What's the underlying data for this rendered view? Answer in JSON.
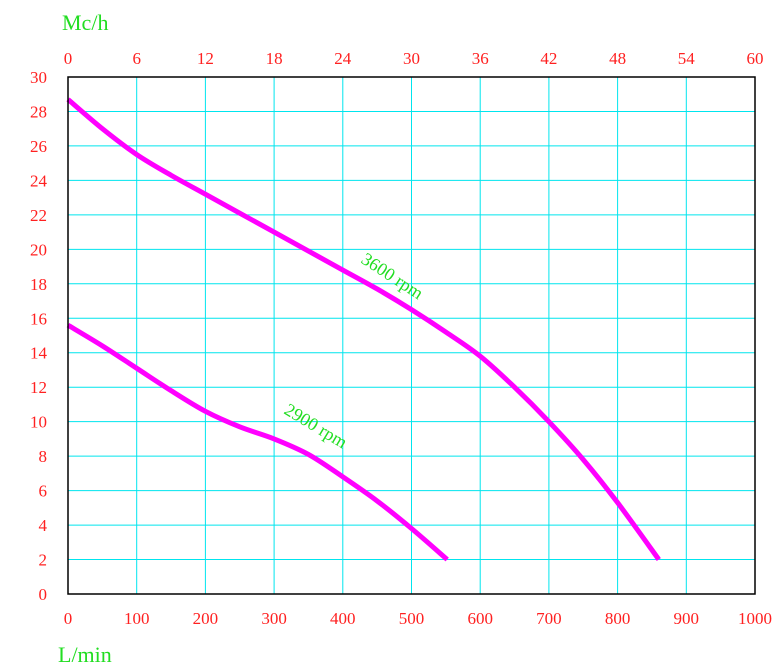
{
  "chart_data": {
    "type": "line",
    "top_axis": {
      "unit_label": "Mc/h",
      "ticks": [
        "0",
        "6",
        "12",
        "18",
        "24",
        "30",
        "36",
        "42",
        "48",
        "54",
        "60"
      ]
    },
    "bottom_axis": {
      "unit_label": "L/min",
      "ticks": [
        "0",
        "100",
        "200",
        "300",
        "400",
        "500",
        "600",
        "700",
        "800",
        "900",
        "1000"
      ],
      "xlim": [
        0,
        1000
      ]
    },
    "left_axis": {
      "ticks": [
        "0",
        "2",
        "4",
        "6",
        "8",
        "10",
        "12",
        "14",
        "16",
        "18",
        "20",
        "22",
        "24",
        "26",
        "28",
        "30"
      ],
      "ylim": [
        0,
        30
      ]
    },
    "grid": true,
    "series": [
      {
        "name": "3600 rpm",
        "x": [
          0,
          50,
          100,
          150,
          200,
          250,
          300,
          350,
          400,
          450,
          500,
          550,
          600,
          650,
          700,
          750,
          800,
          860
        ],
        "y": [
          28.7,
          27.0,
          25.5,
          24.3,
          23.2,
          22.1,
          21.0,
          19.9,
          18.8,
          17.7,
          16.5,
          15.2,
          13.8,
          12.0,
          10.0,
          7.8,
          5.3,
          2.0
        ]
      },
      {
        "name": "2900 rpm",
        "x": [
          0,
          50,
          100,
          150,
          200,
          250,
          300,
          350,
          400,
          450,
          500,
          552
        ],
        "y": [
          15.6,
          14.4,
          13.1,
          11.8,
          10.6,
          9.7,
          9.0,
          8.1,
          6.8,
          5.4,
          3.8,
          2.0
        ]
      }
    ],
    "colors": {
      "series_line": "#ff00ff",
      "grid": "#00e5ee",
      "tick_labels": "#ff2020",
      "unit_labels": "#22dd22",
      "series_labels": "#22dd22"
    }
  }
}
